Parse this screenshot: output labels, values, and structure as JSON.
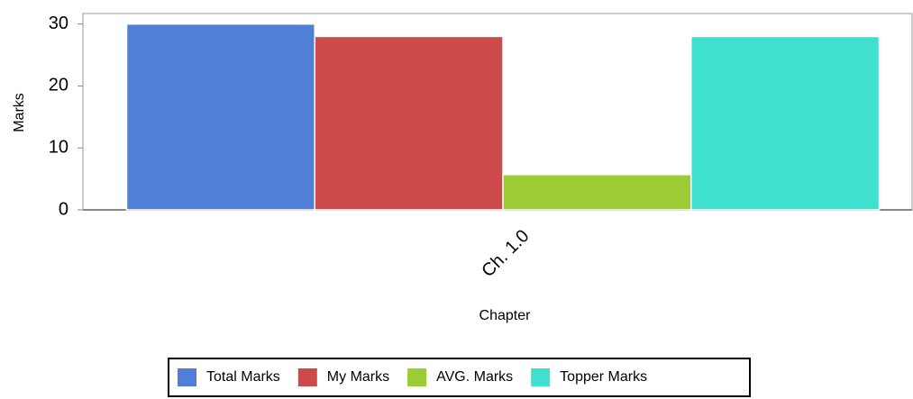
{
  "chart_data": {
    "type": "bar",
    "categories": [
      "Ch. 1.0"
    ],
    "series": [
      {
        "name": "Total Marks",
        "color": "#4f7fd6",
        "values": [
          30
        ]
      },
      {
        "name": "My Marks",
        "color": "#cc4a4a",
        "values": [
          28
        ]
      },
      {
        "name": "AVG. Marks",
        "color": "#9ccc33",
        "values": [
          5.7
        ]
      },
      {
        "name": "Topper Marks",
        "color": "#40e0d0",
        "values": [
          28
        ]
      }
    ],
    "x_label": "Chapter",
    "y_label": "Marks",
    "ylim": [
      0,
      31.7
    ],
    "yticks": [
      0,
      10,
      20,
      30
    ],
    "legend": "bottom"
  }
}
